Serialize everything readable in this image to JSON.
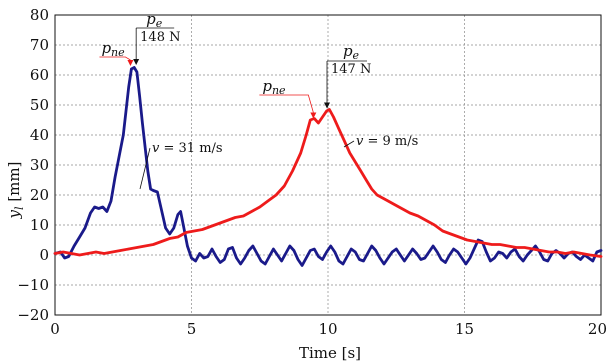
{
  "chart_data": {
    "type": "line",
    "xlabel": "Time [s]",
    "ylabel_main": "y",
    "ylabel_sub": "l",
    "ylabel_unit": " [mm]",
    "xlim": [
      0,
      20
    ],
    "ylim": [
      -20,
      80
    ],
    "xticks": [
      0,
      5,
      10,
      15,
      20
    ],
    "yticks": [
      -20,
      -10,
      0,
      10,
      20,
      30,
      40,
      50,
      60,
      70,
      80
    ],
    "grid": true,
    "colors": {
      "blue": "#1a1a8a",
      "red": "#ee1b1b",
      "ink": "#111111"
    },
    "series": [
      {
        "label": "v = 31 m/s",
        "color": "#1a1a8a",
        "points": [
          [
            0.0,
            0.5
          ],
          [
            0.2,
            1.0
          ],
          [
            0.35,
            -1.0
          ],
          [
            0.5,
            -0.5
          ],
          [
            0.7,
            3.0
          ],
          [
            0.9,
            6.0
          ],
          [
            1.1,
            9.0
          ],
          [
            1.3,
            14.0
          ],
          [
            1.45,
            16.0
          ],
          [
            1.6,
            15.5
          ],
          [
            1.75,
            16.0
          ],
          [
            1.9,
            14.5
          ],
          [
            2.05,
            18.0
          ],
          [
            2.2,
            26.0
          ],
          [
            2.35,
            33.0
          ],
          [
            2.5,
            40.0
          ],
          [
            2.6,
            48.0
          ],
          [
            2.7,
            56.0
          ],
          [
            2.8,
            62.0
          ],
          [
            2.9,
            62.5
          ],
          [
            3.0,
            61.0
          ],
          [
            3.1,
            53.0
          ],
          [
            3.2,
            44.0
          ],
          [
            3.3,
            36.0
          ],
          [
            3.4,
            28.0
          ],
          [
            3.5,
            22.0
          ],
          [
            3.6,
            21.5
          ],
          [
            3.75,
            21.0
          ],
          [
            3.9,
            15.0
          ],
          [
            4.05,
            9.0
          ],
          [
            4.2,
            7.0
          ],
          [
            4.35,
            9.0
          ],
          [
            4.5,
            13.5
          ],
          [
            4.6,
            14.5
          ],
          [
            4.7,
            10.0
          ],
          [
            4.85,
            3.0
          ],
          [
            5.0,
            -1.0
          ],
          [
            5.15,
            -2.0
          ],
          [
            5.3,
            0.5
          ],
          [
            5.45,
            -1.0
          ],
          [
            5.6,
            -0.5
          ],
          [
            5.75,
            2.0
          ],
          [
            5.9,
            -0.5
          ],
          [
            6.05,
            -2.5
          ],
          [
            6.2,
            -1.5
          ],
          [
            6.35,
            2.0
          ],
          [
            6.5,
            2.5
          ],
          [
            6.65,
            -1.0
          ],
          [
            6.8,
            -3.0
          ],
          [
            6.95,
            -1.0
          ],
          [
            7.1,
            1.5
          ],
          [
            7.25,
            3.0
          ],
          [
            7.4,
            0.5
          ],
          [
            7.55,
            -2.0
          ],
          [
            7.7,
            -3.0
          ],
          [
            7.85,
            -0.5
          ],
          [
            8.0,
            2.0
          ],
          [
            8.15,
            0.0
          ],
          [
            8.3,
            -2.0
          ],
          [
            8.45,
            0.5
          ],
          [
            8.6,
            3.0
          ],
          [
            8.75,
            1.5
          ],
          [
            8.9,
            -1.5
          ],
          [
            9.05,
            -3.5
          ],
          [
            9.2,
            -1.0
          ],
          [
            9.35,
            1.5
          ],
          [
            9.5,
            2.0
          ],
          [
            9.65,
            -0.5
          ],
          [
            9.8,
            -1.5
          ],
          [
            9.95,
            1.0
          ],
          [
            10.1,
            3.0
          ],
          [
            10.25,
            1.0
          ],
          [
            10.4,
            -2.0
          ],
          [
            10.55,
            -3.0
          ],
          [
            10.7,
            -0.5
          ],
          [
            10.85,
            2.0
          ],
          [
            11.0,
            1.0
          ],
          [
            11.15,
            -1.5
          ],
          [
            11.3,
            -2.0
          ],
          [
            11.45,
            0.5
          ],
          [
            11.6,
            3.0
          ],
          [
            11.75,
            1.5
          ],
          [
            11.9,
            -1.0
          ],
          [
            12.05,
            -3.0
          ],
          [
            12.2,
            -1.0
          ],
          [
            12.35,
            1.0
          ],
          [
            12.5,
            2.0
          ],
          [
            12.65,
            0.0
          ],
          [
            12.8,
            -2.0
          ],
          [
            12.95,
            0.0
          ],
          [
            13.1,
            2.0
          ],
          [
            13.25,
            0.5
          ],
          [
            13.4,
            -1.5
          ],
          [
            13.55,
            -1.0
          ],
          [
            13.7,
            1.0
          ],
          [
            13.85,
            3.0
          ],
          [
            14.0,
            1.0
          ],
          [
            14.15,
            -1.5
          ],
          [
            14.3,
            -2.5
          ],
          [
            14.45,
            0.0
          ],
          [
            14.6,
            2.0
          ],
          [
            14.75,
            1.0
          ],
          [
            14.9,
            -1.0
          ],
          [
            15.05,
            -3.0
          ],
          [
            15.2,
            -1.0
          ],
          [
            15.35,
            2.0
          ],
          [
            15.5,
            5.0
          ],
          [
            15.65,
            4.5
          ],
          [
            15.8,
            1.0
          ],
          [
            15.95,
            -2.0
          ],
          [
            16.1,
            -1.0
          ],
          [
            16.25,
            1.0
          ],
          [
            16.4,
            0.5
          ],
          [
            16.55,
            -1.0
          ],
          [
            16.7,
            1.0
          ],
          [
            16.85,
            2.0
          ],
          [
            17.0,
            -0.5
          ],
          [
            17.15,
            -2.0
          ],
          [
            17.3,
            0.0
          ],
          [
            17.45,
            1.5
          ],
          [
            17.6,
            3.0
          ],
          [
            17.75,
            1.0
          ],
          [
            17.9,
            -1.5
          ],
          [
            18.05,
            -2.0
          ],
          [
            18.2,
            0.5
          ],
          [
            18.35,
            1.5
          ],
          [
            18.5,
            0.5
          ],
          [
            18.65,
            -1.0
          ],
          [
            18.8,
            0.5
          ],
          [
            18.95,
            1.0
          ],
          [
            19.1,
            -0.5
          ],
          [
            19.25,
            -1.5
          ],
          [
            19.4,
            0.0
          ],
          [
            19.55,
            -1.0
          ],
          [
            19.7,
            -2.0
          ],
          [
            19.85,
            1.0
          ],
          [
            20.0,
            1.5
          ]
        ]
      },
      {
        "label": "v = 9 m/s",
        "color": "#ee1b1b",
        "points": [
          [
            0.0,
            0.5
          ],
          [
            0.3,
            1.0
          ],
          [
            0.6,
            0.5
          ],
          [
            0.9,
            0.0
          ],
          [
            1.2,
            0.5
          ],
          [
            1.5,
            1.0
          ],
          [
            1.8,
            0.5
          ],
          [
            2.1,
            1.0
          ],
          [
            2.4,
            1.5
          ],
          [
            2.7,
            2.0
          ],
          [
            3.0,
            2.5
          ],
          [
            3.3,
            3.0
          ],
          [
            3.6,
            3.5
          ],
          [
            3.9,
            4.5
          ],
          [
            4.2,
            5.5
          ],
          [
            4.5,
            6.0
          ],
          [
            4.8,
            7.5
          ],
          [
            5.1,
            8.0
          ],
          [
            5.4,
            8.5
          ],
          [
            5.7,
            9.5
          ],
          [
            6.0,
            10.5
          ],
          [
            6.3,
            11.5
          ],
          [
            6.6,
            12.5
          ],
          [
            6.9,
            13.0
          ],
          [
            7.2,
            14.5
          ],
          [
            7.5,
            16.0
          ],
          [
            7.8,
            18.0
          ],
          [
            8.1,
            20.0
          ],
          [
            8.4,
            23.0
          ],
          [
            8.7,
            28.0
          ],
          [
            9.0,
            34.0
          ],
          [
            9.2,
            40.0
          ],
          [
            9.35,
            45.0
          ],
          [
            9.5,
            45.5
          ],
          [
            9.65,
            44.0
          ],
          [
            9.8,
            46.0
          ],
          [
            9.95,
            48.0
          ],
          [
            10.05,
            48.5
          ],
          [
            10.2,
            46.0
          ],
          [
            10.4,
            42.0
          ],
          [
            10.6,
            38.0
          ],
          [
            10.8,
            34.0
          ],
          [
            11.0,
            31.0
          ],
          [
            11.2,
            28.0
          ],
          [
            11.4,
            25.0
          ],
          [
            11.6,
            22.0
          ],
          [
            11.8,
            20.0
          ],
          [
            12.0,
            19.0
          ],
          [
            12.2,
            18.0
          ],
          [
            12.4,
            17.0
          ],
          [
            12.7,
            15.5
          ],
          [
            13.0,
            14.0
          ],
          [
            13.3,
            13.0
          ],
          [
            13.6,
            11.5
          ],
          [
            13.9,
            10.0
          ],
          [
            14.2,
            8.0
          ],
          [
            14.5,
            7.0
          ],
          [
            14.8,
            6.0
          ],
          [
            15.1,
            5.0
          ],
          [
            15.4,
            4.5
          ],
          [
            15.7,
            4.0
          ],
          [
            16.0,
            3.5
          ],
          [
            16.3,
            3.5
          ],
          [
            16.6,
            3.0
          ],
          [
            16.9,
            2.5
          ],
          [
            17.2,
            2.5
          ],
          [
            17.5,
            2.0
          ],
          [
            17.8,
            1.5
          ],
          [
            18.1,
            1.0
          ],
          [
            18.4,
            1.0
          ],
          [
            18.7,
            0.5
          ],
          [
            19.0,
            1.0
          ],
          [
            19.3,
            0.5
          ],
          [
            19.6,
            0.0
          ],
          [
            20.0,
            -0.5
          ]
        ]
      }
    ],
    "annotations": {
      "blue_label": "v = 31 m/s",
      "red_label": "v = 9 m/s",
      "blue_pne": {
        "base": "p",
        "sub": "ne",
        "x": 2.8,
        "y": 63
      },
      "blue_pe": {
        "base": "p",
        "sub": "e",
        "value": "148 N",
        "x": 2.9,
        "y": 63
      },
      "red_pne": {
        "base": "p",
        "sub": "ne",
        "x": 9.5,
        "y": 45.5
      },
      "red_pe": {
        "base": "p",
        "sub": "e",
        "value": "147 N",
        "x": 10.0,
        "y": 48.5
      }
    }
  }
}
